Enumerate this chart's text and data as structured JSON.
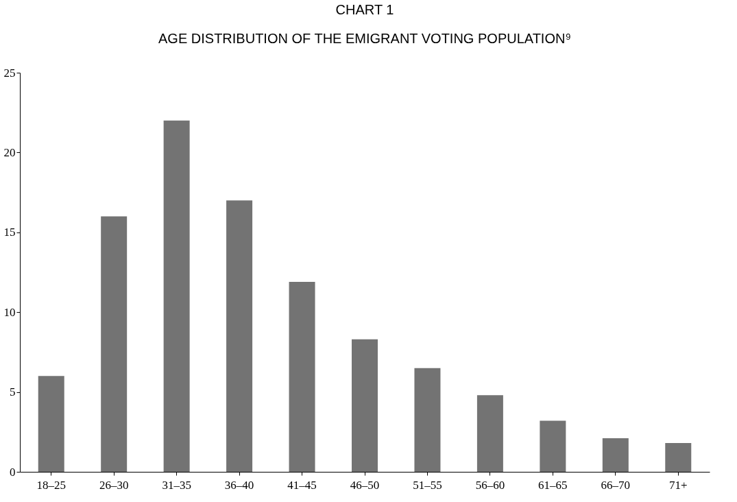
{
  "chart_data": {
    "type": "bar",
    "title": "CHART 1",
    "subtitle": "AGE DISTRIBUTION OF THE EMIGRANT VOTING POPULATION⁹",
    "categories": [
      "18–25",
      "26–30",
      "31–35",
      "36–40",
      "41–45",
      "46–50",
      "51–55",
      "56–60",
      "61–65",
      "66–70",
      "71+"
    ],
    "values": [
      6.0,
      16.0,
      22.0,
      17.0,
      11.9,
      8.3,
      6.5,
      4.8,
      3.2,
      2.1,
      1.8
    ],
    "color": "#737373",
    "ylim": [
      0,
      25
    ],
    "yticks": [
      0,
      5,
      10,
      15,
      20,
      25
    ],
    "grid": false
  }
}
